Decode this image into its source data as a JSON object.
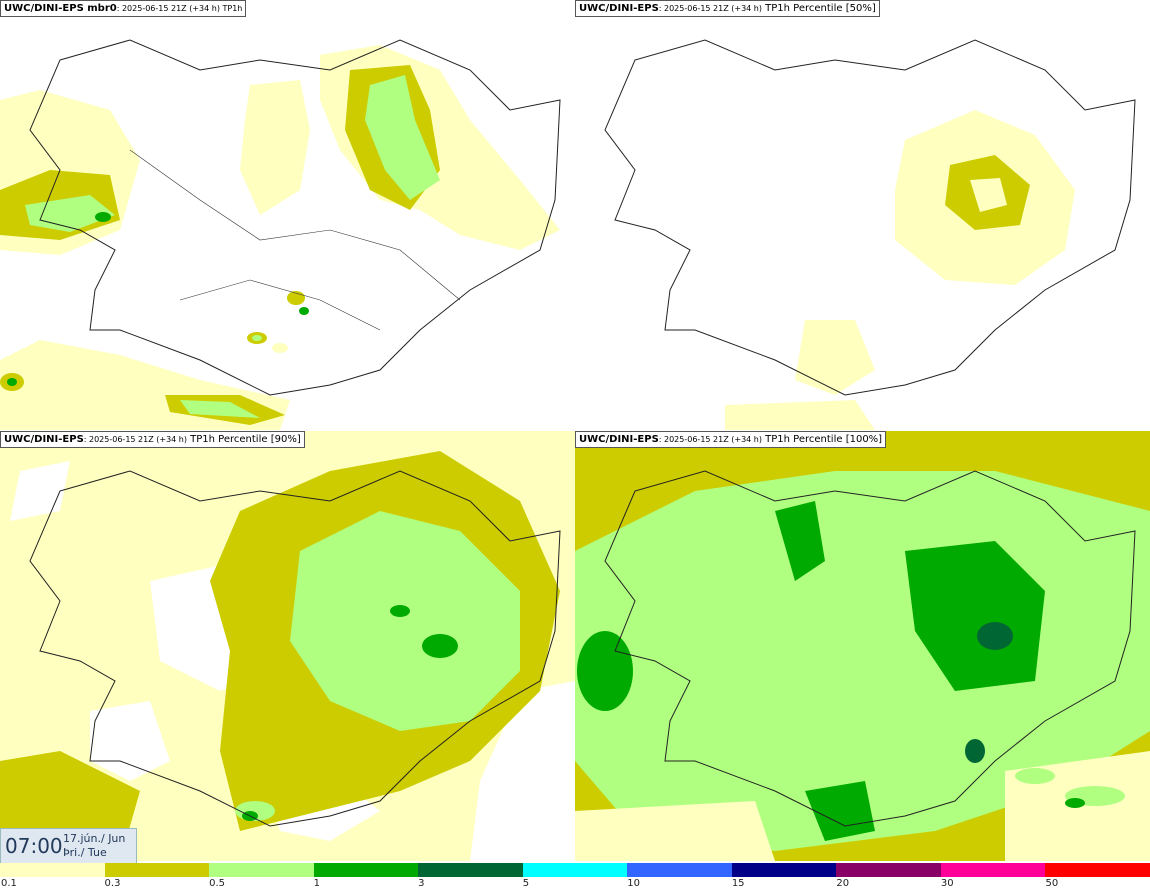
{
  "panels": [
    {
      "model": "UWC/DINI-EPS mbr0",
      "meta": ": 2025-06-15 21Z (+34 h) TP1h",
      "field": ""
    },
    {
      "model": "UWC/DINI-EPS",
      "meta": ": 2025-06-15 21Z (+34 h)",
      "field": " TP1h Percentile [50%]"
    },
    {
      "model": "UWC/DINI-EPS",
      "meta": ": 2025-06-15 21Z (+34 h)",
      "field": " TP1h Percentile [90%]"
    },
    {
      "model": "UWC/DINI-EPS",
      "meta": ": 2025-06-15 21Z (+34 h)",
      "field": " TP1h Percentile [100%]"
    }
  ],
  "valid_time": {
    "time": "07:00",
    "date_line1": "17.jún./ Jun",
    "date_line2": "Þri./ Tue"
  },
  "colorbar": {
    "colors": [
      "#ffffc0",
      "#cccc00",
      "#b0ff80",
      "#00aa00",
      "#006633",
      "#00ffff",
      "#3366ff",
      "#000088",
      "#880066",
      "#ff0099",
      "#ff0000"
    ],
    "ticks": [
      "0.1",
      "0.3",
      "0.5",
      "1",
      "3",
      "5",
      "10",
      "15",
      "20",
      "30",
      "50"
    ]
  }
}
